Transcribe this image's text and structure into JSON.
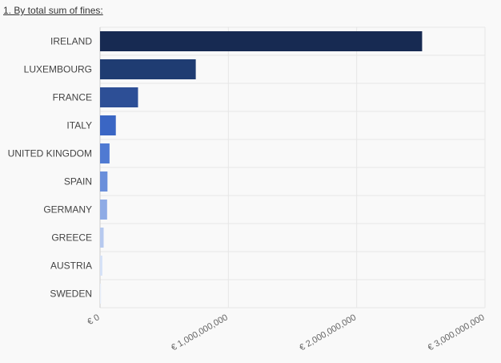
{
  "heading": "1. By total sum of fines:",
  "chart_data": {
    "type": "bar",
    "orientation": "horizontal",
    "title": "",
    "xlabel": "",
    "ylabel": "",
    "categories": [
      "IRELAND",
      "LUXEMBOURG",
      "FRANCE",
      "ITALY",
      "UNITED KINGDOM",
      "SPAIN",
      "GERMANY",
      "GREECE",
      "AUSTRIA",
      "SWEDEN"
    ],
    "values": [
      2510000000,
      746000000,
      296000000,
      123000000,
      74000000,
      58000000,
      55000000,
      28000000,
      18000000,
      8000000
    ],
    "colors": [
      "#172a52",
      "#1f3c72",
      "#2d4f96",
      "#3a66c4",
      "#4f7ad2",
      "#6a8fdb",
      "#8fabe5",
      "#b6c9ef",
      "#d5e1f7",
      "#e7eefa"
    ],
    "xlim": [
      0,
      3000000000
    ],
    "xticks": [
      0,
      1000000000,
      2000000000,
      3000000000
    ],
    "xtick_labels": [
      "€ 0",
      "€ 1,000,000,000",
      "€ 2,000,000,000",
      "€ 3,000,000,000"
    ],
    "grid": true,
    "legend": "none"
  }
}
